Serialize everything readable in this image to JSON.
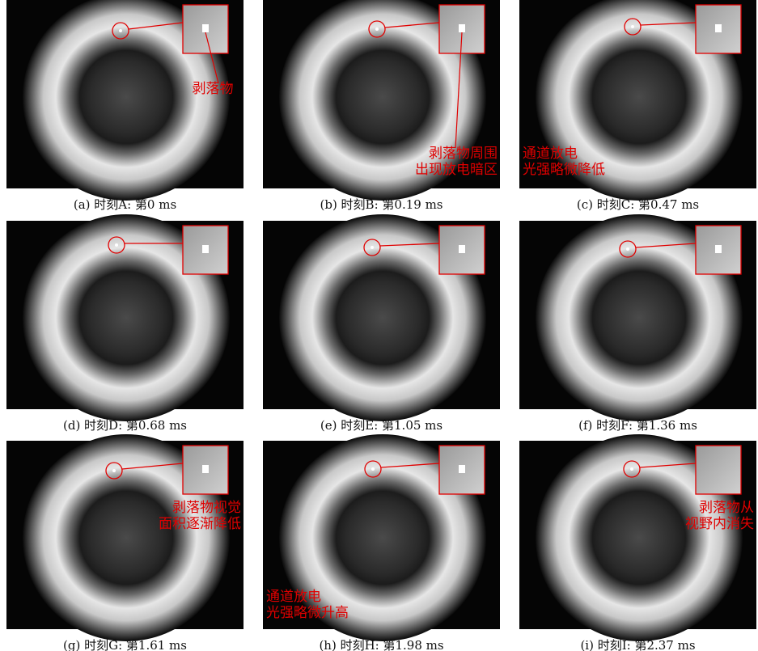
{
  "panels": [
    {
      "caption": "(a) 时刻A: 第0 ms",
      "annotation": [
        "剥落物"
      ]
    },
    {
      "caption": "(b) 时刻B: 第0.19 ms",
      "annotation": [
        "剥落物周围",
        "出现放电暗区"
      ]
    },
    {
      "caption": "(c) 时刻C: 第0.47 ms",
      "annotation": [
        "通道放电",
        "光强略微降低"
      ]
    },
    {
      "caption": "(d) 时刻D: 第0.68 ms",
      "annotation": []
    },
    {
      "caption": "(e) 时刻E: 第1.05 ms",
      "annotation": []
    },
    {
      "caption": "(f) 时刻F: 第1.36 ms",
      "annotation": []
    },
    {
      "caption": "(g) 时刻G: 第1.61 ms",
      "annotation": [
        "剥落物视觉",
        "面积逐渐降低"
      ]
    },
    {
      "caption": "(h) 时刻H: 第1.98 ms",
      "annotation": [
        "通道放电",
        "光强略微升高"
      ]
    },
    {
      "caption": "(i) 时刻I: 第2.37 ms",
      "annotation": [
        "剥落物从",
        "视野内消失"
      ]
    }
  ]
}
